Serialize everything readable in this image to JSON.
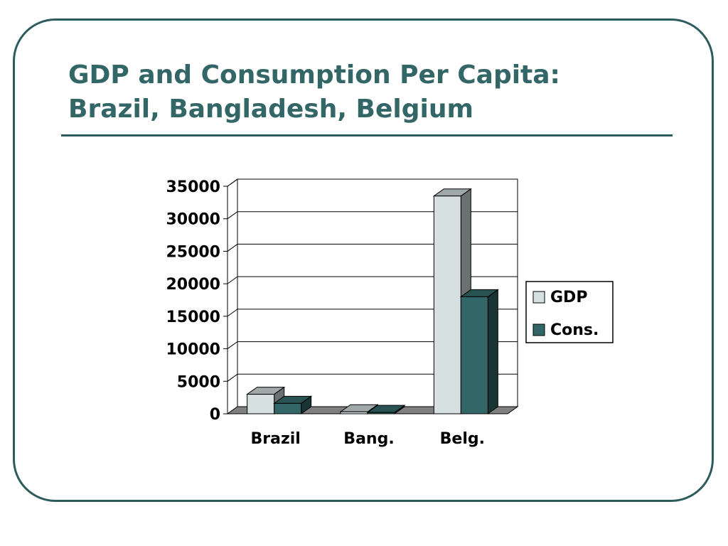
{
  "slide": {
    "title_line1": "GDP and Consumption Per Capita:",
    "title_line2": "Brazil, Bangladesh, Belgium"
  },
  "colors": {
    "frame": "#2e5b5c",
    "title": "#336666",
    "gdp": "#d6e0e0",
    "cons": "#336666",
    "floor": "#808080"
  },
  "chart_data": {
    "type": "bar",
    "title": "",
    "xlabel": "",
    "ylabel": "",
    "style": "3d-clustered-column",
    "categories": [
      "Brazil",
      "Bang.",
      "Belg."
    ],
    "series": [
      {
        "name": "GDP",
        "values": [
          3000,
          300,
          33500
        ]
      },
      {
        "name": "Cons.",
        "values": [
          1600,
          200,
          18000
        ]
      }
    ],
    "ylim": [
      0,
      35000
    ],
    "yticks": [
      "35000",
      "30000",
      "25000",
      "20000",
      "15000",
      "10000",
      "5000",
      "0"
    ],
    "grid": true,
    "legend": "right"
  }
}
